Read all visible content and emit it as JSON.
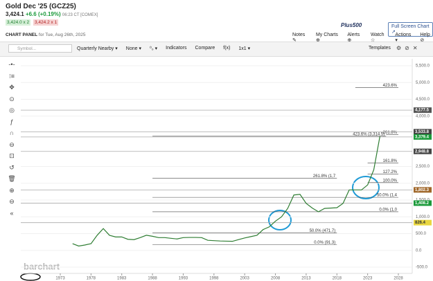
{
  "header": {
    "title": "Gold Dec '25 (GCZ25)",
    "price": "3,424.1",
    "change": "+6.6 (+0.19%)",
    "time": "06:23 CT [COMEX]",
    "bid": "3,424.0 x 2",
    "ask": "3,424.2 x 1",
    "ad": "Plus500",
    "full_screen": "Full Screen Chart ↗"
  },
  "panel": {
    "name": "CHART PANEL",
    "date": "for Tue, Aug 26th, 2025",
    "actions": [
      "Notes ✎",
      "My Charts ⊕",
      "Alerts ⊕",
      "Watch ☆",
      "Actions ▾",
      "Help ⊘"
    ]
  },
  "toolbar": {
    "symbol": "Symbol...",
    "items": [
      "Quarterly Nearby ▾",
      "None ▾",
      "⁰₀ ▾",
      "Indicators",
      "Compare",
      "f(x)",
      "1x1 ▾"
    ],
    "templates": "Templates"
  },
  "chart": {
    "type": "line",
    "watermark": "barchart",
    "color": "#2e7d32",
    "x": [
      1975,
      1976,
      1977,
      1978,
      1979,
      1980,
      1981,
      1982,
      1983,
      1984,
      1985,
      1986,
      1987,
      1988,
      1989,
      1990,
      1991,
      1992,
      1993,
      1994,
      1995,
      1996,
      1997,
      1998,
      1999,
      2000,
      2001,
      2002,
      2003,
      2004,
      2005,
      2006,
      2007,
      2008,
      2009,
      2010,
      2011,
      2012,
      2013,
      2014,
      2015,
      2016,
      2017,
      2018,
      2019,
      2020,
      2021,
      2022,
      2023,
      2024,
      2025
    ],
    "values": [
      200,
      130,
      160,
      200,
      450,
      650,
      450,
      400,
      400,
      330,
      320,
      380,
      450,
      420,
      380,
      380,
      360,
      340,
      380,
      385,
      385,
      380,
      300,
      290,
      280,
      275,
      270,
      320,
      370,
      410,
      450,
      620,
      700,
      870,
      1000,
      1250,
      1650,
      1670,
      1400,
      1260,
      1150,
      1250,
      1260,
      1270,
      1400,
      1800,
      1800,
      1800,
      1950,
      2400,
      3400
    ],
    "ylim": [
      -500,
      5500
    ],
    "yticks": [
      {
        "value": 5500,
        "label": "5,500.0"
      },
      {
        "value": 5000,
        "label": "5,000.0"
      },
      {
        "value": 4500,
        "label": "4,500.0"
      },
      {
        "value": 4000,
        "label": "4,000.0"
      },
      {
        "value": 2500,
        "label": "2,500.0"
      },
      {
        "value": 2000,
        "label": "2,000.0"
      },
      {
        "value": 1500,
        "label": "1,500.0"
      },
      {
        "value": 1000,
        "label": "1,000.0"
      },
      {
        "value": 500,
        "label": "500.0"
      },
      {
        "value": 0,
        "label": "0.0"
      },
      {
        "value": -500,
        "label": "-500.0"
      }
    ],
    "xlim": [
      1973,
      2028
    ],
    "xticks": [
      1973,
      1978,
      1983,
      1988,
      1993,
      1998,
      2003,
      2008,
      2013,
      2018,
      2023,
      2028
    ],
    "price_tags": [
      {
        "value": 4177.5,
        "label": "4,177.5",
        "color": "#555555"
      },
      {
        "value": 3533.8,
        "label": "3,533.8",
        "color": "#444444"
      },
      {
        "value": 3379.4,
        "label": "3,379.4",
        "color": "#1a9a3a"
      },
      {
        "value": 2948.8,
        "label": "2,948.8",
        "color": "#444444"
      },
      {
        "value": 1802.3,
        "label": "1,802.3",
        "color": "#a0672a"
      },
      {
        "value": 1408.2,
        "label": "1,408.2",
        "color": "#1a9a3a"
      },
      {
        "value": 826.4,
        "label": "826.4",
        "color": "#e8d640"
      }
    ],
    "fib_levels": [
      {
        "label": "423.6%",
        "value": 4850,
        "x0": 2021,
        "x1": 2028
      },
      {
        "label": "423.6% (3,314.5)",
        "value": 3400,
        "x0": 1988,
        "x1": 2026
      },
      {
        "label": "261.8%",
        "value": 3450,
        "x0": 2026,
        "x1": 2028
      },
      {
        "label": "161.8%",
        "value": 2600,
        "x0": 2023,
        "x1": 2028
      },
      {
        "label": "127.2%",
        "value": 2270,
        "x0": 2023,
        "x1": 2028
      },
      {
        "label": "100.0%",
        "value": 2020,
        "x0": 2023,
        "x1": 2028
      },
      {
        "label": "50.0% (1,4",
        "value": 1580,
        "x0": 1988,
        "x1": 2028
      },
      {
        "label": "0.0% (1,0",
        "value": 1150,
        "x0": 1988,
        "x1": 2028
      },
      {
        "label": "261.8% (1,7",
        "value": 2150,
        "x0": 1988,
        "x1": 2018
      },
      {
        "label": "50.0% (471.7)",
        "value": 520,
        "x0": 1988,
        "x1": 2018
      },
      {
        "label": "0.0% (91.3)",
        "value": 170,
        "x0": 1988,
        "x1": 2018
      }
    ]
  }
}
